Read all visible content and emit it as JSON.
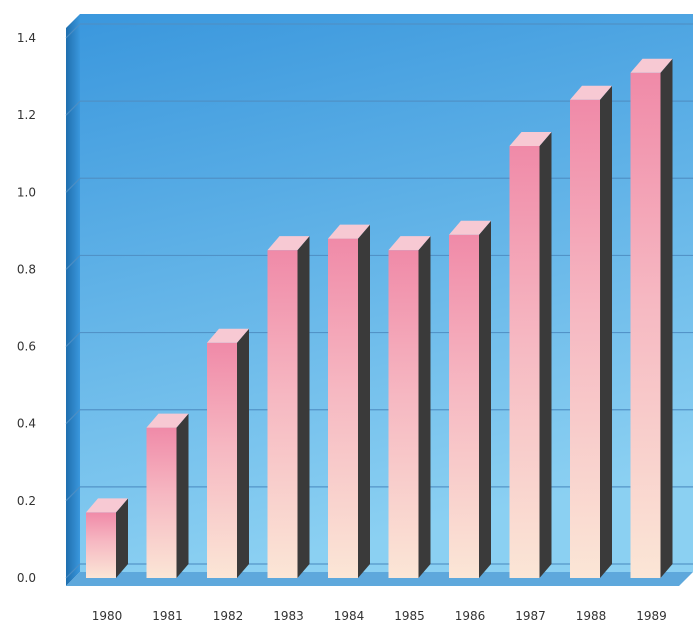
{
  "chart_data": {
    "type": "bar",
    "title": "",
    "xlabel": "",
    "ylabel": "",
    "categories": [
      "1980",
      "1981",
      "1982",
      "1983",
      "1984",
      "1985",
      "1986",
      "1987",
      "1988",
      "1989"
    ],
    "values": [
      0.17,
      0.39,
      0.61,
      0.85,
      0.88,
      0.85,
      0.89,
      1.12,
      1.24,
      1.31
    ],
    "ylim": [
      0,
      1.4
    ],
    "yticks": [
      "0.0",
      "0.2",
      "0.4",
      "0.6",
      "0.8",
      "1.0",
      "1.2",
      "1.4"
    ],
    "grid": true,
    "legend": "none",
    "colors": {
      "panel_top": "#3a97dd",
      "panel_bottom": "#8bd0f2",
      "grid_line": "#4f8fc4",
      "bar_front_top": "#f08aa8",
      "bar_front_bottom": "#fbe6d6",
      "bar_top_face": "#f7c9d3",
      "bar_side_face": "#3a3a3a"
    }
  }
}
